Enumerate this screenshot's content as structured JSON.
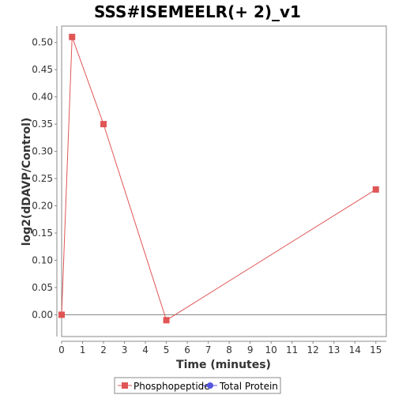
{
  "chart_data": {
    "type": "line",
    "title": "SSS#ISEMEELR(+ 2)_v1",
    "xlabel": "Time (minutes)",
    "ylabel": "log2(dDAVP/Control)",
    "xlim": [
      0,
      15.5
    ],
    "ylim": [
      -0.04,
      0.53
    ],
    "x_ticks": [
      0,
      1,
      2,
      3,
      4,
      5,
      6,
      7,
      8,
      9,
      10,
      11,
      12,
      13,
      14,
      15
    ],
    "y_ticks": [
      0.0,
      0.05,
      0.1,
      0.15,
      0.2,
      0.25,
      0.3,
      0.35,
      0.4,
      0.45,
      0.5
    ],
    "grid": false,
    "zero_line": true,
    "legend_position": "bottom",
    "series": [
      {
        "name": "Phosphopeptide",
        "color": "#e05555",
        "marker": "square",
        "points": [
          {
            "x": 0,
            "y": 0.0
          },
          {
            "x": 0.5,
            "y": 0.51
          },
          {
            "x": 2,
            "y": 0.35
          },
          {
            "x": 5,
            "y": -0.01
          },
          {
            "x": 15,
            "y": 0.23
          }
        ]
      },
      {
        "name": "Total Protein",
        "color": "#5555e0",
        "marker": "circle",
        "points": []
      }
    ]
  }
}
